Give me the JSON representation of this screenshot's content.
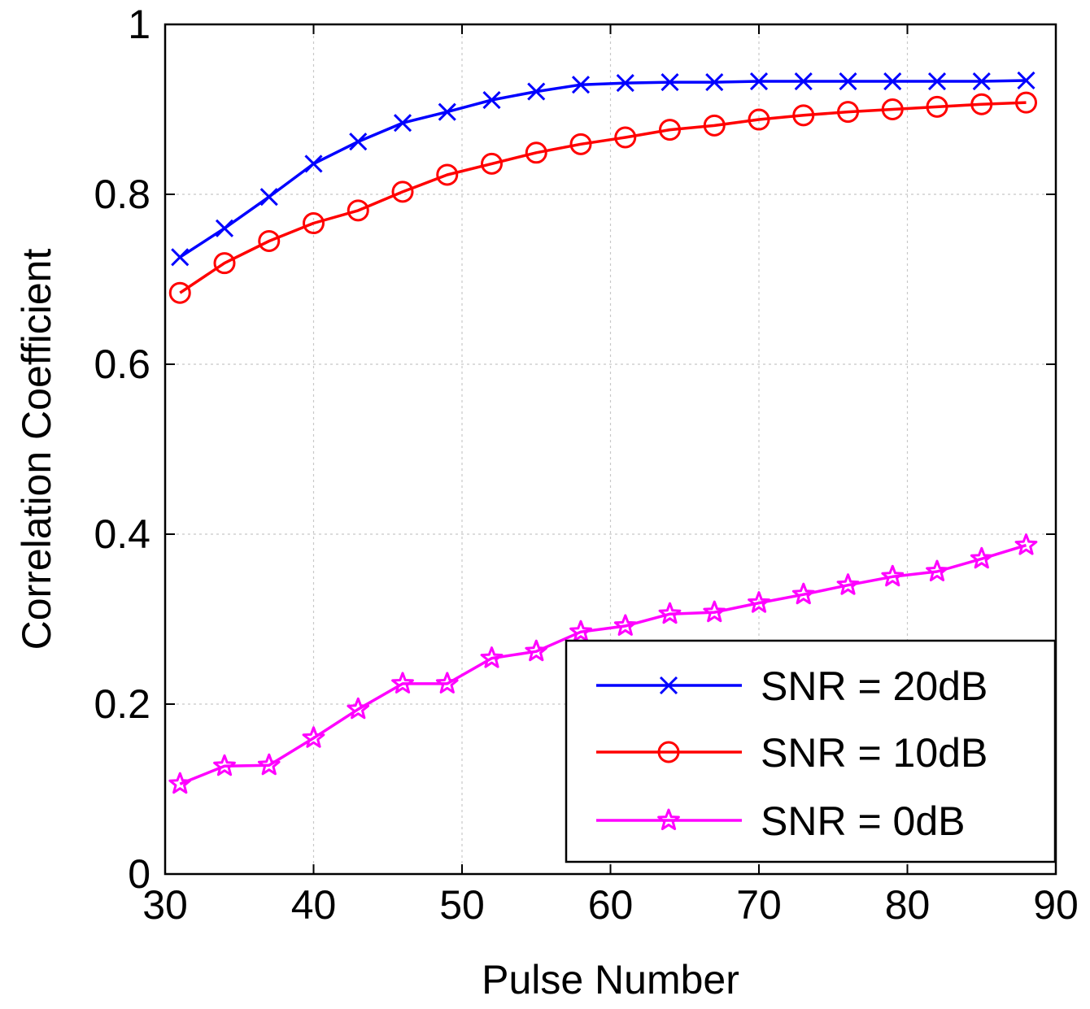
{
  "chart_data": {
    "type": "line",
    "title": "",
    "xlabel": "Pulse Number",
    "ylabel": "Correlation Coefficient",
    "xlim": [
      30,
      90
    ],
    "ylim": [
      0,
      1
    ],
    "xticks": [
      30,
      40,
      50,
      60,
      70,
      80,
      90
    ],
    "yticks": [
      0,
      0.2,
      0.4,
      0.6,
      0.8,
      1
    ],
    "xtick_labels": [
      "30",
      "40",
      "50",
      "60",
      "70",
      "80",
      "90"
    ],
    "ytick_labels": [
      "0",
      "0.2",
      "0.4",
      "0.6",
      "0.8",
      "1"
    ],
    "grid": true,
    "legend_position": "bottom-right",
    "x": [
      31,
      34,
      37,
      40,
      43,
      46,
      49,
      52,
      55,
      58,
      61,
      64,
      67,
      70,
      73,
      76,
      79,
      82,
      85,
      88
    ],
    "series": [
      {
        "name": "SNR = 20dB",
        "color": "#0000ff",
        "marker": "x",
        "values": [
          0.726,
          0.76,
          0.797,
          0.836,
          0.862,
          0.884,
          0.897,
          0.911,
          0.921,
          0.929,
          0.931,
          0.932,
          0.932,
          0.933,
          0.933,
          0.933,
          0.933,
          0.933,
          0.933,
          0.934
        ]
      },
      {
        "name": "SNR = 10dB",
        "color": "#ff0000",
        "marker": "o",
        "values": [
          0.684,
          0.719,
          0.745,
          0.766,
          0.781,
          0.803,
          0.823,
          0.836,
          0.849,
          0.859,
          0.867,
          0.876,
          0.881,
          0.888,
          0.893,
          0.897,
          0.9,
          0.903,
          0.906,
          0.908
        ]
      },
      {
        "name": "SNR = 0dB",
        "color": "#ff00ff",
        "marker": "star",
        "values": [
          0.106,
          0.127,
          0.128,
          0.16,
          0.194,
          0.224,
          0.224,
          0.254,
          0.262,
          0.285,
          0.292,
          0.306,
          0.308,
          0.319,
          0.329,
          0.34,
          0.35,
          0.356,
          0.371,
          0.387
        ]
      }
    ]
  }
}
